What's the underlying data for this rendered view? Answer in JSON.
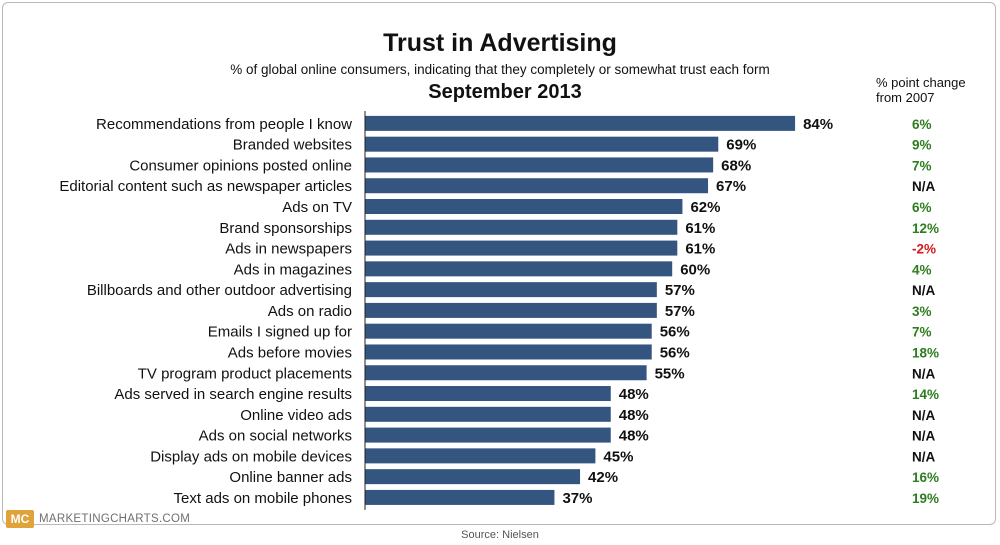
{
  "chart_data": {
    "type": "bar",
    "orientation": "horizontal",
    "title": "Trust in Advertising",
    "subtitle": "% of global online consumers, indicating that they completely or somewhat trust each form",
    "date_label": "September 2013",
    "change_header": [
      "% point change",
      "from 2007"
    ],
    "xlim": [
      0,
      100
    ],
    "value_suffix": "%",
    "bar_color": "#34557f",
    "categories": [
      "Recommendations from people I know",
      "Branded websites",
      "Consumer opinions posted online",
      "Editorial content such as newspaper articles",
      "Ads on TV",
      "Brand sponsorships",
      "Ads in newspapers",
      "Ads in magazines",
      "Billboards and other outdoor advertising",
      "Ads on radio",
      "Emails I signed up for",
      "Ads before movies",
      "TV program product placements",
      "Ads served in search engine results",
      "Online video ads",
      "Ads on social networks",
      "Display ads on mobile devices",
      "Online banner ads",
      "Text ads on mobile phones"
    ],
    "values": [
      84,
      69,
      68,
      67,
      62,
      61,
      61,
      60,
      57,
      57,
      56,
      56,
      55,
      48,
      48,
      48,
      45,
      42,
      37
    ],
    "change_labels": [
      "6%",
      "9%",
      "7%",
      "N/A",
      "6%",
      "12%",
      "-2%",
      "4%",
      "N/A",
      "3%",
      "7%",
      "18%",
      "N/A",
      "14%",
      "N/A",
      "N/A",
      "N/A",
      "16%",
      "19%"
    ],
    "change_colors": {
      "positive": "#2e7d1f",
      "negative": "#d7191c",
      "na": "#111111"
    }
  },
  "footer": {
    "logo_text": "MC",
    "brand": "MARKETINGCHARTS.COM",
    "source": "Source: Nielsen"
  }
}
